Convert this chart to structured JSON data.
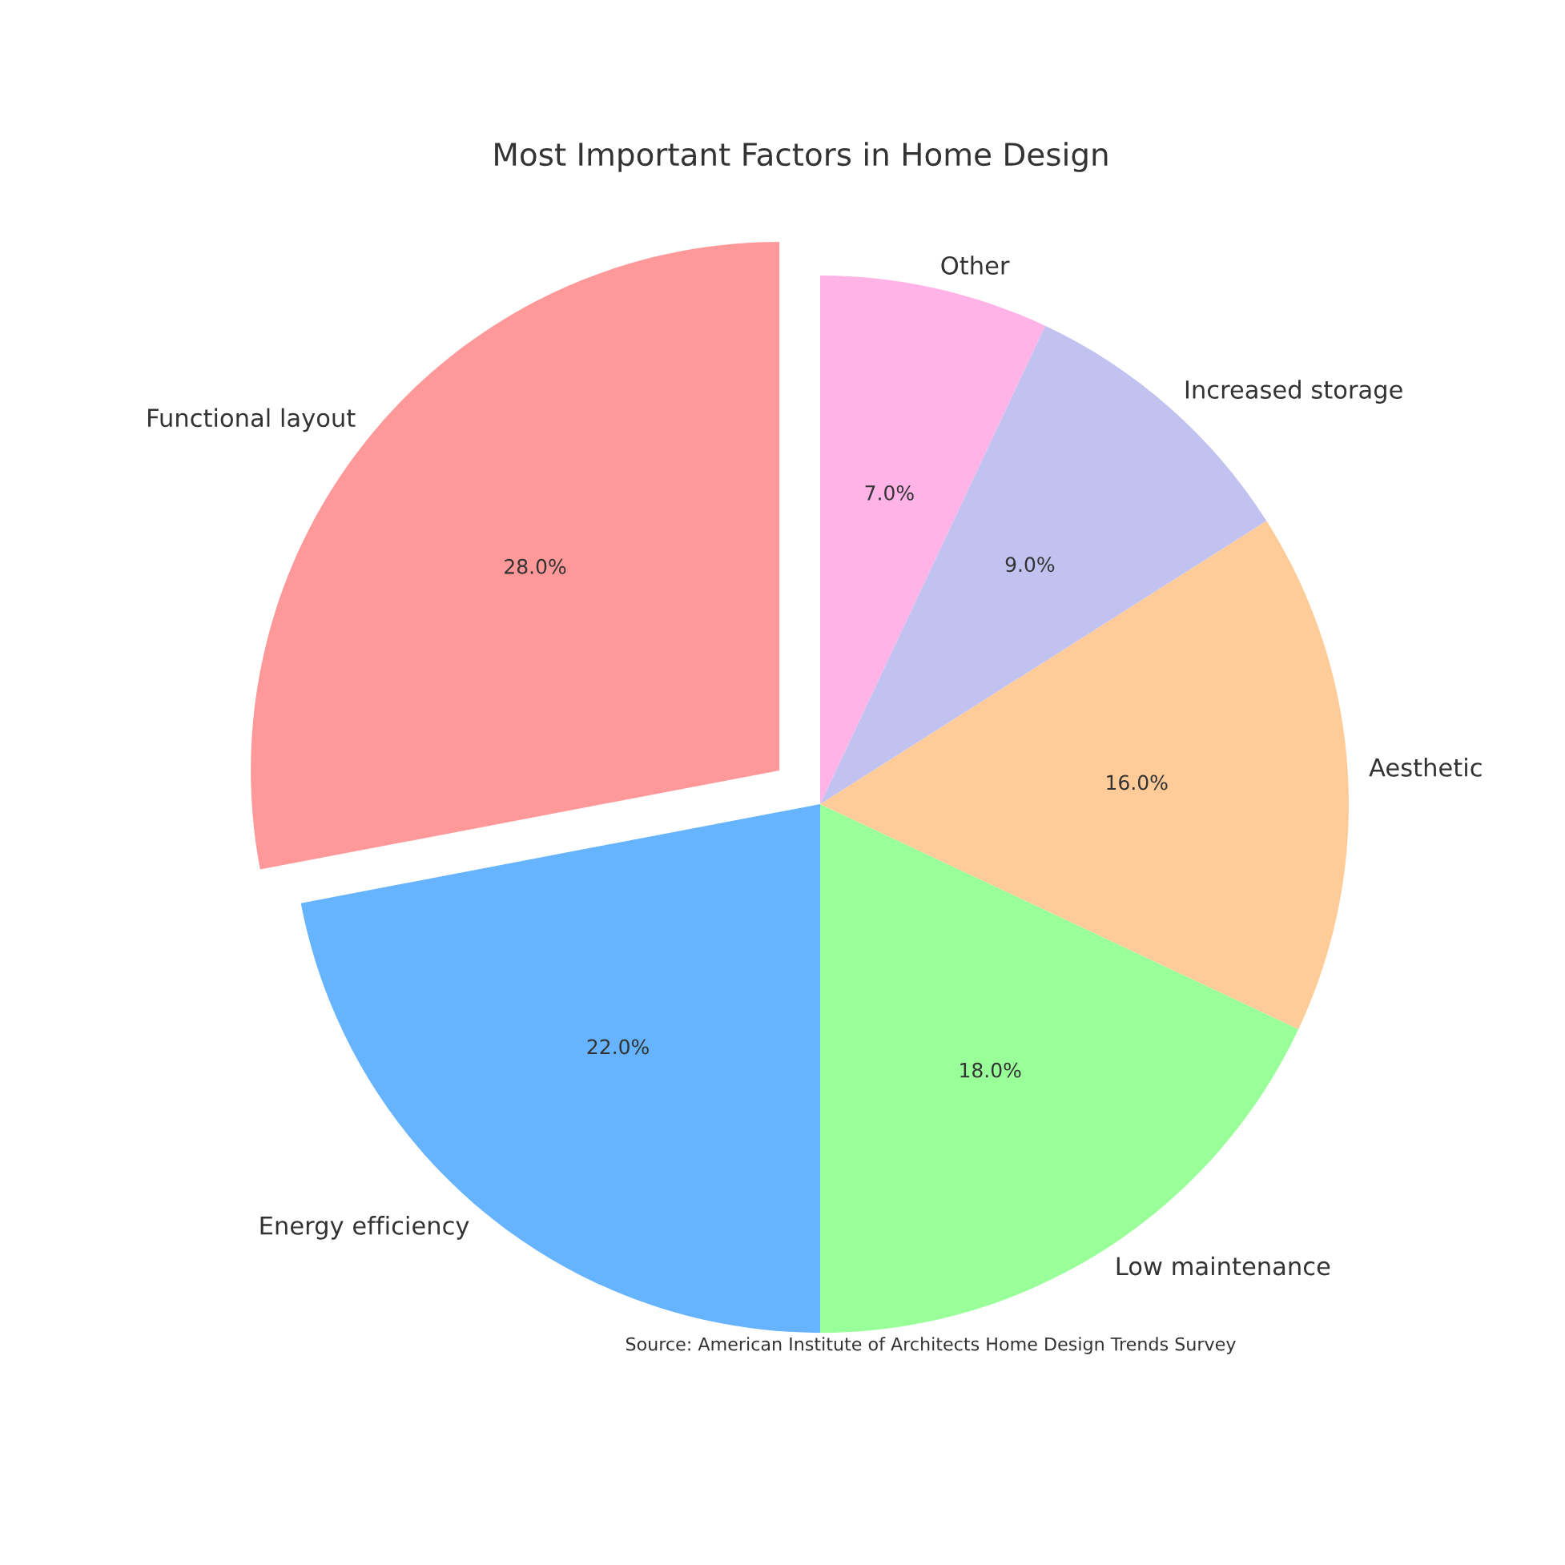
{
  "chart_data": {
    "type": "pie",
    "title": "Most Important Factors in Home Design",
    "categories": [
      "Functional layout",
      "Energy efficiency",
      "Low maintenance",
      "Aesthetic",
      "Increased storage",
      "Other"
    ],
    "values": [
      28,
      22,
      18,
      16,
      9,
      7
    ],
    "colors": [
      "#ff9999",
      "#66b3ff",
      "#99ff99",
      "#ffcc99",
      "#c2c2f0",
      "#ffb3e6"
    ],
    "value_labels": [
      "28.0%",
      "22.0%",
      "18.0%",
      "16.0%",
      "9.0%",
      "7.0%"
    ],
    "annotations": [
      "Source: American Institute of Architects Home Design Trends Survey"
    ]
  }
}
